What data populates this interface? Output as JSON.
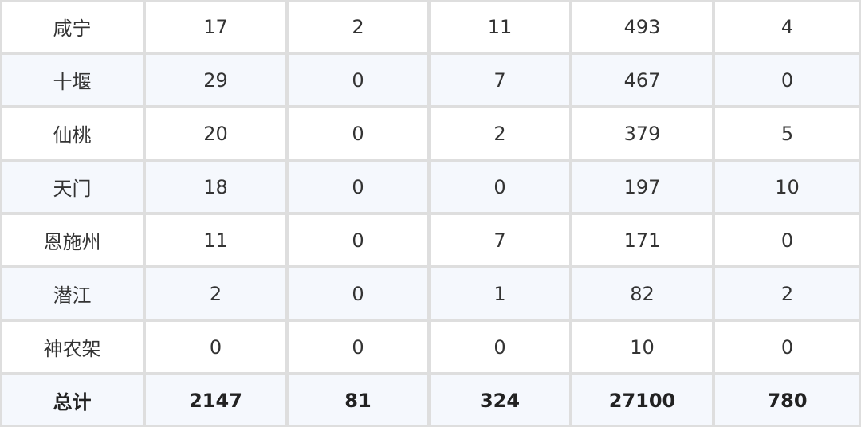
{
  "table": {
    "rows": [
      [
        "咸宁",
        17,
        2,
        11,
        493,
        4
      ],
      [
        "十堰",
        29,
        0,
        7,
        467,
        0
      ],
      [
        "仙桃",
        20,
        0,
        2,
        379,
        5
      ],
      [
        "天门",
        18,
        0,
        0,
        197,
        10
      ],
      [
        "恩施州",
        11,
        0,
        7,
        171,
        0
      ],
      [
        "潜江",
        2,
        0,
        1,
        82,
        2
      ],
      [
        "神农架",
        0,
        0,
        0,
        10,
        0
      ],
      [
        "总计",
        2147,
        81,
        324,
        27100,
        780
      ]
    ]
  }
}
